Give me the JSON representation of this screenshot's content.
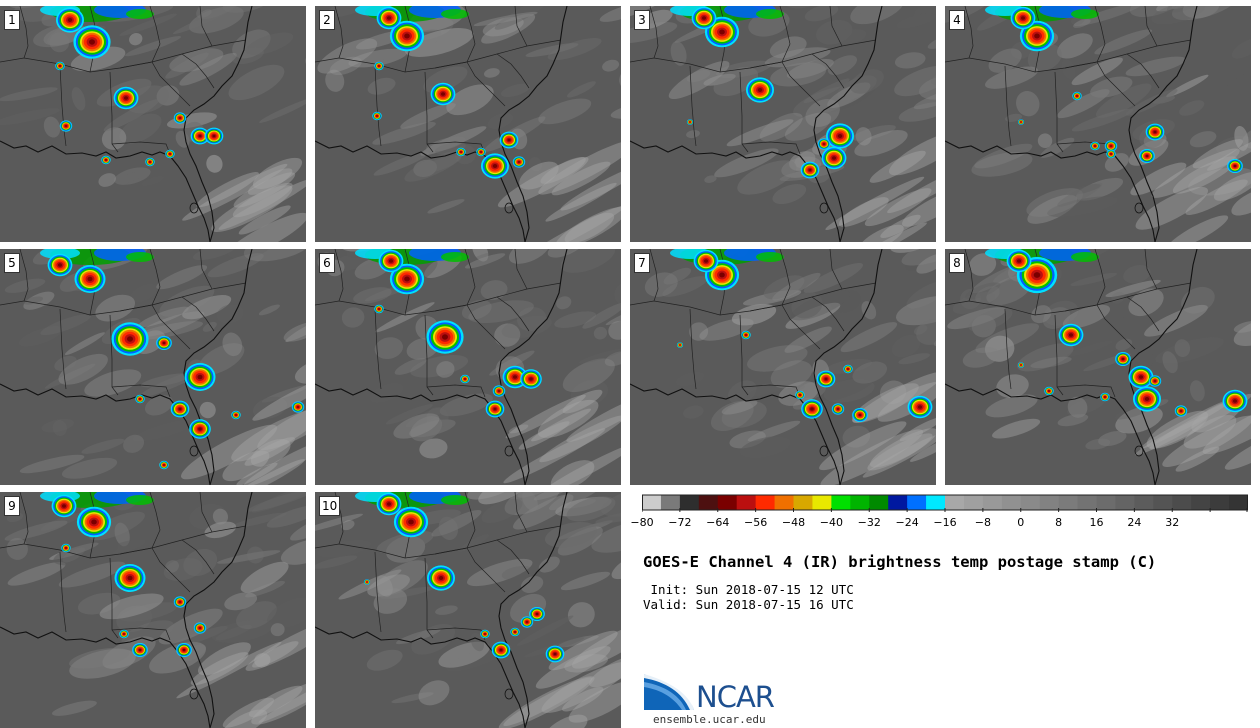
{
  "title": "GOES-E Channel 4 (IR) brightness temp postage stamp (C)",
  "init_line": " Init: Sun 2018-07-15 12 UTC",
  "valid_line": "Valid: Sun 2018-07-15 16 UTC",
  "logo_text": "NCAR",
  "website": "ensemble.ucar.edu",
  "panels": [
    {
      "label": "1"
    },
    {
      "label": "2"
    },
    {
      "label": "3"
    },
    {
      "label": "4"
    },
    {
      "label": "5"
    },
    {
      "label": "6"
    },
    {
      "label": "7"
    },
    {
      "label": "8"
    },
    {
      "label": "9"
    },
    {
      "label": "10"
    }
  ],
  "colorbar": {
    "tick_labels": [
      "−80",
      "−72",
      "−64",
      "−56",
      "−48",
      "−40",
      "−32",
      "−24",
      "−16",
      "−8",
      "0",
      "8",
      "16",
      "24",
      "32"
    ],
    "colors": [
      "#cccccc",
      "#7a7a7a",
      "#2e2e2e",
      "#4d1010",
      "#7a0000",
      "#bb0f0f",
      "#ff2a00",
      "#f07000",
      "#d8a800",
      "#e8e800",
      "#00e000",
      "#00b400",
      "#008a00",
      "#0018a0",
      "#0070ff",
      "#00e8ff",
      "#a8a8a8",
      "#a0a0a0",
      "#999999",
      "#919191",
      "#8a8a8a",
      "#828282",
      "#7b7b7b",
      "#737373",
      "#6c6c6c",
      "#646464",
      "#5c5c5c",
      "#545454",
      "#4c4c4c",
      "#444444",
      "#3c3c3c",
      "#343434"
    ]
  }
}
